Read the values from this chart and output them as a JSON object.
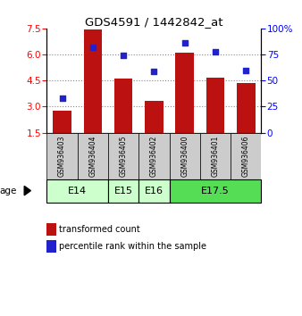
{
  "title": "GDS4591 / 1442842_at",
  "samples": [
    "GSM936403",
    "GSM936404",
    "GSM936405",
    "GSM936402",
    "GSM936400",
    "GSM936401",
    "GSM936406"
  ],
  "transformed_count": [
    2.75,
    7.45,
    4.6,
    3.35,
    6.1,
    4.65,
    4.35
  ],
  "percentile_rank": [
    33,
    82,
    74,
    59,
    86,
    78,
    60
  ],
  "age_positions": {
    "E14": [
      0,
      1
    ],
    "E15": [
      2,
      2
    ],
    "E16": [
      3,
      3
    ],
    "E17.5": [
      4,
      6
    ]
  },
  "age_colors": {
    "E14": "#ccffcc",
    "E15": "#ccffcc",
    "E16": "#ccffcc",
    "E17.5": "#55dd55"
  },
  "ylim_left": [
    1.5,
    7.5
  ],
  "ylim_right": [
    0,
    100
  ],
  "yticks_left": [
    1.5,
    3.0,
    4.5,
    6.0,
    7.5
  ],
  "yticks_right": [
    0,
    25,
    50,
    75,
    100
  ],
  "bar_color": "#bb1111",
  "dot_color": "#2222cc",
  "bar_bottom": 1.5,
  "legend_bar_label": "transformed count",
  "legend_dot_label": "percentile rank within the sample",
  "age_label": "age",
  "grid_color": "#888888",
  "bg_color": "#ffffff",
  "sample_box_color": "#cccccc"
}
